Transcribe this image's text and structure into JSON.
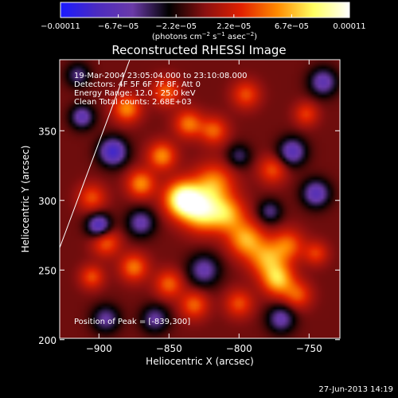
{
  "colorbar": {
    "tick_labels": [
      "−0.00011",
      "−6.7e−05",
      "−2.2e−05",
      "2.2e−05",
      "6.7e−05",
      "0.00011"
    ],
    "unit_label": "(photons cm",
    "unit_sup1": "−2",
    "unit_mid": " s",
    "unit_sup2": "−1",
    "unit_tail": " asec",
    "unit_sup3": "−2",
    "unit_close": ")",
    "colors": [
      "#1a1aff",
      "#4b2bc0",
      "#6a3aa8",
      "#000000",
      "#8a1010",
      "#e02000",
      "#ff8a00",
      "#ffff60",
      "#ffffff"
    ]
  },
  "chart_data": {
    "type": "heatmap",
    "title": "Reconstructed RHESSI Image",
    "xlabel": "Heliocentric X (arcsec)",
    "ylabel": "Heliocentric Y (arcsec)",
    "xlim": [
      -928,
      -728
    ],
    "ylim": [
      201,
      401
    ],
    "x_ticks": [
      -900,
      -850,
      -800,
      -750
    ],
    "x_tick_labels": [
      "−900",
      "−850",
      "−800",
      "−750"
    ],
    "y_ticks": [
      200,
      250,
      300,
      350
    ],
    "y_tick_labels": [
      "200",
      "250",
      "300",
      "350"
    ],
    "value_range": [
      -0.00011,
      0.00011
    ],
    "peak_position": [
      -839,
      300
    ],
    "sources": [
      {
        "x": -840,
        "y": 301,
        "amp": 1.0,
        "sigma": 9
      },
      {
        "x": -826,
        "y": 292,
        "amp": 0.75,
        "sigma": 10
      },
      {
        "x": -818,
        "y": 312,
        "amp": 0.55,
        "sigma": 10
      },
      {
        "x": -808,
        "y": 290,
        "amp": 0.55,
        "sigma": 9
      },
      {
        "x": -795,
        "y": 272,
        "amp": 0.6,
        "sigma": 9
      },
      {
        "x": -780,
        "y": 258,
        "amp": 0.55,
        "sigma": 9
      },
      {
        "x": -772,
        "y": 243,
        "amp": 0.65,
        "sigma": 8
      },
      {
        "x": -765,
        "y": 268,
        "amp": 0.45,
        "sigma": 8
      },
      {
        "x": -758,
        "y": 232,
        "amp": 0.4,
        "sigma": 7
      },
      {
        "x": -870,
        "y": 312,
        "amp": 0.55,
        "sigma": 7
      },
      {
        "x": -855,
        "y": 332,
        "amp": 0.55,
        "sigma": 7
      },
      {
        "x": -836,
        "y": 355,
        "amp": 0.5,
        "sigma": 7
      },
      {
        "x": -818,
        "y": 350,
        "amp": 0.45,
        "sigma": 7
      },
      {
        "x": -880,
        "y": 366,
        "amp": 0.55,
        "sigma": 7
      },
      {
        "x": -852,
        "y": 378,
        "amp": 0.45,
        "sigma": 7
      },
      {
        "x": -905,
        "y": 302,
        "amp": 0.4,
        "sigma": 7
      },
      {
        "x": -895,
        "y": 270,
        "amp": 0.45,
        "sigma": 7
      },
      {
        "x": -875,
        "y": 252,
        "amp": 0.5,
        "sigma": 7
      },
      {
        "x": -905,
        "y": 245,
        "amp": 0.4,
        "sigma": 6
      },
      {
        "x": -850,
        "y": 240,
        "amp": 0.45,
        "sigma": 7
      },
      {
        "x": -832,
        "y": 225,
        "amp": 0.45,
        "sigma": 7
      },
      {
        "x": -800,
        "y": 226,
        "amp": 0.4,
        "sigma": 7
      },
      {
        "x": -795,
        "y": 376,
        "amp": 0.4,
        "sigma": 7
      },
      {
        "x": -776,
        "y": 322,
        "amp": 0.4,
        "sigma": 7
      },
      {
        "x": -745,
        "y": 262,
        "amp": 0.35,
        "sigma": 6
      },
      {
        "x": -752,
        "y": 362,
        "amp": 0.35,
        "sigma": 6
      },
      {
        "x": -890,
        "y": 335,
        "amp": -0.75,
        "sigma": 7
      },
      {
        "x": -900,
        "y": 282,
        "amp": -0.7,
        "sigma": 6
      },
      {
        "x": -870,
        "y": 284,
        "amp": -0.5,
        "sigma": 7
      },
      {
        "x": -912,
        "y": 360,
        "amp": -0.55,
        "sigma": 6
      },
      {
        "x": -825,
        "y": 250,
        "amp": -0.5,
        "sigma": 8
      },
      {
        "x": -860,
        "y": 215,
        "amp": -0.45,
        "sigma": 7
      },
      {
        "x": -745,
        "y": 305,
        "amp": -0.6,
        "sigma": 7
      },
      {
        "x": -762,
        "y": 335,
        "amp": -0.6,
        "sigma": 7
      },
      {
        "x": -740,
        "y": 385,
        "amp": -0.55,
        "sigma": 7
      },
      {
        "x": -778,
        "y": 292,
        "amp": -0.4,
        "sigma": 6
      },
      {
        "x": -770,
        "y": 215,
        "amp": -0.5,
        "sigma": 7
      },
      {
        "x": -800,
        "y": 332,
        "amp": -0.35,
        "sigma": 6
      },
      {
        "x": -895,
        "y": 215,
        "amp": -0.45,
        "sigma": 7
      },
      {
        "x": -915,
        "y": 390,
        "amp": -0.4,
        "sigma": 6
      }
    ],
    "limb_line": [
      [
        -928,
        266
      ],
      [
        -878,
        401
      ]
    ]
  },
  "annotation": {
    "time_range": "19-Mar-2004 23:05:04.000 to 23:10:08.000",
    "detectors": "Detectors: 4F 5F 6F 7F 8F, Att 0",
    "energy_range": "Energy Range: 12.0 - 25.0 keV",
    "clean_info": "Clean    Total counts: 2.68E+03",
    "peak_position": "Position of Peak = [-839,300]"
  },
  "footer": {
    "timestamp": "27-Jun-2013 14:19"
  }
}
